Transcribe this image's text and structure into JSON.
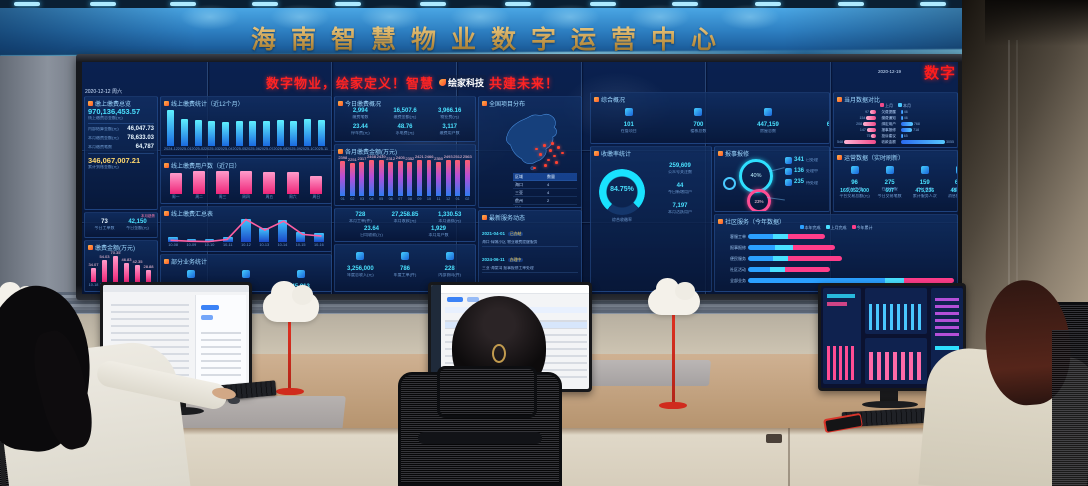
{
  "sign": {
    "title": "海南智慧物业数字运营中心"
  },
  "ticker": {
    "left": "数字物业，绘家定义！智慧",
    "logo": "绘家科技",
    "right": "共建未来！",
    "corner": "数字",
    "datetime_left": "2020-12-12 周六",
    "datetime_right": "2020-12-19"
  },
  "colors": {
    "screen_bg": "#081a40",
    "cyan": "#4be1ff",
    "pink": "#ff4d94",
    "led_red": "#ff2323",
    "gold": "#c9a35b",
    "wall_blue": "#2e80c2"
  },
  "wall": {
    "stats_left": {
      "title": "缴上缴费总览",
      "big1": "970,136,453.57",
      "big1_label": "线上缴费总金额(元)",
      "r1v": "46,047.73",
      "r1l": "内部结算金额(元)",
      "r2v": "78,633.03",
      "r2l": "本月缴费金额(元)",
      "r3v": "64,787",
      "r3l": "本月缴费笔数",
      "big2": "346,067,007.21",
      "big2_label": "累计到账金额(元)"
    },
    "small_stats": {
      "s1": "73",
      "s1l": "今日工单数",
      "s2": "42,150",
      "s2l": "今日金额(元)",
      "chip": "本月趋势"
    },
    "pink_small": {
      "title": "缴费金额(万元)",
      "show_values": true,
      "values": [
        34.07,
        54.03,
        70.35,
        46.83,
        42.35,
        28.88
      ],
      "labels": [
        "10-18",
        "10-19",
        "10-20",
        "10-21",
        "10-22",
        "10-23"
      ]
    },
    "cyan_chart": {
      "title": "线上缴费统计（近12个月）",
      "values": [
        3400,
        2600,
        2480,
        2380,
        2300,
        2350,
        2420,
        2380,
        2450,
        2400,
        2500,
        2460
      ],
      "labels": [
        "2024-12",
        "2025-01",
        "2025-02",
        "2025-03",
        "2025-04",
        "2025-05",
        "2025-06",
        "2025-07",
        "2025-08",
        "2025-09",
        "2025-10",
        "2025-11"
      ]
    },
    "pink_chart": {
      "title": "线上缴费用户数（近7日）",
      "values": [
        620,
        650,
        655,
        660,
        645,
        630,
        520
      ],
      "labels": [
        "周一",
        "周二",
        "周三",
        "周四",
        "周五",
        "周六",
        "周日"
      ]
    },
    "combo_chart": {
      "title": "线上缴费汇总表",
      "values": [
        26,
        20,
        18,
        30,
        128,
        80,
        122,
        58,
        48
      ],
      "line": [
        22,
        18,
        16,
        26,
        120,
        70,
        112,
        50,
        42
      ],
      "labels": [
        "10-08",
        "10-09",
        "10-10",
        "10-11",
        "10-12",
        "10-13",
        "10-14",
        "10-15",
        "10-16"
      ]
    },
    "biz_stats": {
      "title": "部分业务统计",
      "items": [
        {
          "v": "733,779",
          "l": "在线收款总额(元)"
        },
        {
          "v": "71",
          "l": "今日工单(件)"
        },
        {
          "v": "45,813",
          "l": "公众号用户(人)"
        }
      ]
    },
    "mid_stats1": {
      "title": "今日缴费概况",
      "cells": [
        {
          "v": "2,994",
          "l": "缴费笔数"
        },
        {
          "v": "16,507.6",
          "l": "缴费金额(元)"
        },
        {
          "v": "3,966.16",
          "l": "物业费(元)"
        },
        {
          "v": "23.44",
          "l": "停车费(元)"
        },
        {
          "v": "48.76",
          "l": "水电费(元)"
        },
        {
          "v": "3,117",
          "l": "缴费用户数"
        }
      ]
    },
    "grad_chart": {
      "title": "各月缴费金额(万元)",
      "show_values": true,
      "values": [
        2398,
        2251,
        2317,
        2468,
        2439,
        2312,
        2405,
        2352,
        2421,
        2466,
        2350,
        2493,
        2512,
        2563
      ],
      "labels": [
        "01",
        "02",
        "03",
        "04",
        "05",
        "06",
        "07",
        "08",
        "09",
        "10",
        "11",
        "12",
        "01",
        "02"
      ]
    },
    "mid_stats2": {
      "cells": [
        {
          "v": "728",
          "l": "本月工单(件)"
        },
        {
          "v": "27,258.85",
          "l": "本月收款(元)"
        },
        {
          "v": "1,330.53",
          "l": "本月退款(元)"
        },
        {
          "v": "23.64",
          "l": "日均收款(万)"
        },
        {
          "v": "1,929",
          "l": "本月用户数"
        }
      ]
    },
    "mid_stats3": {
      "cells": [
        {
          "v": "3,256,000",
          "l": "年度总收入(元)"
        },
        {
          "v": "786",
          "l": "年度工单(件)"
        },
        {
          "v": "228",
          "l": "内部协同(件)"
        }
      ]
    },
    "map_panel": {
      "title": "全国项目分布",
      "header": [
        "区域",
        "数量"
      ],
      "rows": [
        [
          "海口",
          "4"
        ],
        [
          "三亚",
          "4"
        ],
        [
          "儋州",
          "2"
        ],
        [
          "琼海",
          "1"
        ],
        [
          "文昌",
          "1"
        ]
      ]
    },
    "list_panel": {
      "title": "最新服务动态",
      "rows": [
        {
          "date": "2021-04-01",
          "tag": "已办结",
          "desc": "海口·绿城小区 物业缴费提醒服务"
        },
        {
          "date": "2024-06-11",
          "tag": "办理中",
          "desc": "三亚·海棠湾 报事报修工单处理"
        },
        {
          "date": "2021-02-15",
          "tag": "已办结",
          "desc": "儋州·滨海新区 车位续费办理"
        },
        {
          "date": "2023-03-22",
          "tag": "1,043件",
          "desc": "人民东路32号 批量工单已办结"
        },
        {
          "date": "2020-10-23",
          "tag": "已办结",
          "desc": "琼海·博鳌镇 投诉建议回访"
        }
      ]
    },
    "icon_stats": {
      "title": "综合概况",
      "cells": [
        {
          "v": "101",
          "l": "在管项目"
        },
        {
          "v": "700",
          "l": "楼栋总数"
        },
        {
          "v": "447,159",
          "l": "房屋总数"
        },
        {
          "v": "646,205",
          "l": "注册用户"
        },
        {
          "v": "57,025",
          "l": "车位总数"
        },
        {
          "v": "70,819",
          "l": "设备总数"
        }
      ]
    },
    "gauge_panel": {
      "title": "收缴率统计",
      "pct": "84.75%",
      "pct_label": "综合收缴率",
      "side": [
        {
          "v": "259,609",
          "l": "公众号关注数"
        },
        {
          "v": "44",
          "l": "今日新增用户"
        },
        {
          "v": "7,197",
          "l": "本月活跃用户"
        }
      ]
    },
    "bubble_panel": {
      "title": "报事报修",
      "big": "40%",
      "small": "23%",
      "legend": [
        {
          "v": "341",
          "l": "已处理"
        },
        {
          "v": "136",
          "l": "处理中"
        },
        {
          "v": "235",
          "l": "待处理"
        }
      ]
    },
    "tornado": {
      "title": "当月数据对比",
      "legend_left": "上月",
      "legend_right": "本月",
      "rows": [
        {
          "l": "欠费提醒",
          "a": 97,
          "b": 46
        },
        {
          "l": "缴费通知",
          "a": 154,
          "b": 46
        },
        {
          "l": "绑定用户",
          "a": 208,
          "b": 768
        },
        {
          "l": "报事报修",
          "a": 147,
          "b": 718
        },
        {
          "l": "投诉建议",
          "a": 75,
          "b": 65
        },
        {
          "l": "收款金额",
          "a": 548,
          "b": 3055
        }
      ]
    },
    "ops_panel": {
      "title": "运营数据（实时刷新）",
      "cells": [
        {
          "v": "96",
          "l": "今日工单"
        },
        {
          "v": "275",
          "l": "在线客服"
        },
        {
          "v": "159",
          "l": "今日巡更"
        },
        {
          "v": "616",
          "l": "设备告警"
        }
      ],
      "cells2": [
        {
          "v": "169,052,400",
          "l": "平台交易总额(元)"
        },
        {
          "v": "607",
          "l": "今日交易笔数"
        },
        {
          "v": "475,236",
          "l": "累计服务人次"
        },
        {
          "v": "488,830",
          "l": "消息推送总数"
        }
      ]
    },
    "stacked": {
      "title": "社区服务（今年数据）",
      "legend": [
        "本年完成",
        "上月完成",
        "今年累计"
      ],
      "rows": [
        {
          "l": "客服工单",
          "segs": [
            20,
            12,
            30
          ]
        },
        {
          "l": "报事报修",
          "segs": [
            22,
            14,
            34
          ]
        },
        {
          "l": "便民服务",
          "segs": [
            20,
            12,
            44
          ]
        },
        {
          "l": "社区活动",
          "segs": [
            18,
            12,
            36
          ]
        },
        {
          "l": "全部业务",
          "segs": [
            110,
            16,
            40
          ]
        }
      ]
    }
  }
}
